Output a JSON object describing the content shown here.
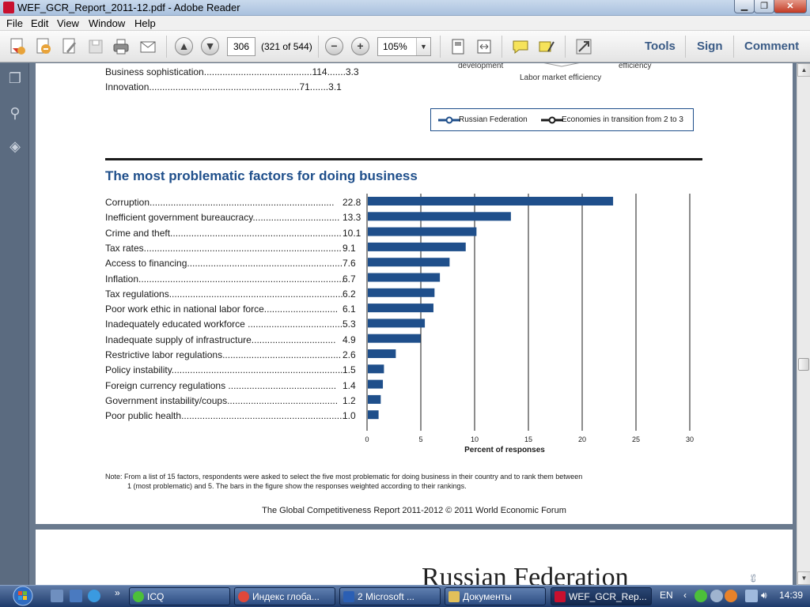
{
  "window": {
    "title": "WEF_GCR_Report_2011-12.pdf - Adobe Reader",
    "min_label": "▁",
    "max_label": "❐",
    "close_label": "✕"
  },
  "menu": [
    "File",
    "Edit",
    "View",
    "Window",
    "Help"
  ],
  "toolbar": {
    "page_number": "306",
    "page_count": "(321 of 544)",
    "zoom": "105%",
    "tools_label": "Tools",
    "sign_label": "Sign",
    "comment_label": "Comment"
  },
  "page": {
    "radar_labels": {
      "development": "development",
      "efficiency": "efficiency",
      "labor_market": "Labor market efficiency"
    },
    "pillars": [
      {
        "name": "Business sophistication",
        "leader": ".........................................",
        "rank": "114",
        "leader2": ".......",
        "score": "3.3"
      },
      {
        "name": "Innovation",
        "leader": ".........................................................",
        "rank": "71",
        "leader2": ".......",
        "score": "3.1"
      }
    ],
    "legend": {
      "series1": "Russian Federation",
      "series2": "Economies in transition from 2 to 3"
    },
    "section_title": "The most problematic factors for doing business",
    "factors": [
      {
        "label": "Corruption......................................................................",
        "value": "22.8"
      },
      {
        "label": "Inefficient government bureaucracy.................................",
        "value": "13.3"
      },
      {
        "label": "Crime and theft.................................................................",
        "value": "10.1"
      },
      {
        "label": "Tax rates...........................................................................",
        "value": "9.1"
      },
      {
        "label": "Access to financing...........................................................",
        "value": "7.6"
      },
      {
        "label": "Inflation..............................................................................",
        "value": "6.7"
      },
      {
        "label": "Tax regulations..................................................................",
        "value": "6.2"
      },
      {
        "label": "Poor work ethic in national labor force............................",
        "value": "6.1"
      },
      {
        "label": "Inadequately educated workforce ....................................",
        "value": "5.3"
      },
      {
        "label": "Inadequate supply of infrastructure................................",
        "value": "4.9"
      },
      {
        "label": "Restrictive labor regulations.............................................",
        "value": "2.6"
      },
      {
        "label": "Policy instability.................................................................",
        "value": "1.5"
      },
      {
        "label": "Foreign currency regulations .........................................",
        "value": "1.4"
      },
      {
        "label": "Government instability/coups..........................................",
        "value": "1.2"
      },
      {
        "label": "Poor public health..............................................................",
        "value": "1.0"
      }
    ],
    "note_line1": "Note: From a list of 15 factors, respondents were asked to select the five most problematic for doing business in their country and to rank them between",
    "note_line2": "1 (most problematic) and 5. The bars in the figure show the responses weighted according to their rankings.",
    "footer": "The Global Competitiveness Report 2011-2012 © 2011 World Economic Forum",
    "next_page_heading": "Russian Federation",
    "next_page_side": "es"
  },
  "chart_data": {
    "type": "bar",
    "orientation": "horizontal",
    "categories": [
      "Corruption",
      "Inefficient government bureaucracy",
      "Crime and theft",
      "Tax rates",
      "Access to financing",
      "Inflation",
      "Tax regulations",
      "Poor work ethic in national labor force",
      "Inadequately educated workforce",
      "Inadequate supply of infrastructure",
      "Restrictive labor regulations",
      "Policy instability",
      "Foreign currency regulations",
      "Government instability/coups",
      "Poor public health"
    ],
    "values": [
      22.8,
      13.3,
      10.1,
      9.1,
      7.6,
      6.7,
      6.2,
      6.1,
      5.3,
      4.9,
      2.6,
      1.5,
      1.4,
      1.2,
      1.0
    ],
    "xlabel": "Percent of responses",
    "xlim": [
      0,
      30
    ],
    "xticks": [
      "0",
      "5",
      "10",
      "15",
      "20",
      "25",
      "30"
    ],
    "grid": true,
    "bar_color": "#1f4f8b"
  },
  "taskbar": {
    "tasks": [
      {
        "label": "ICQ"
      },
      {
        "label": "Индекс глоба..."
      },
      {
        "label": "2 Microsoft ..."
      },
      {
        "label": "Документы"
      },
      {
        "label": "WEF_GCR_Rep..."
      }
    ],
    "lang": "EN",
    "clock": "14:39"
  }
}
